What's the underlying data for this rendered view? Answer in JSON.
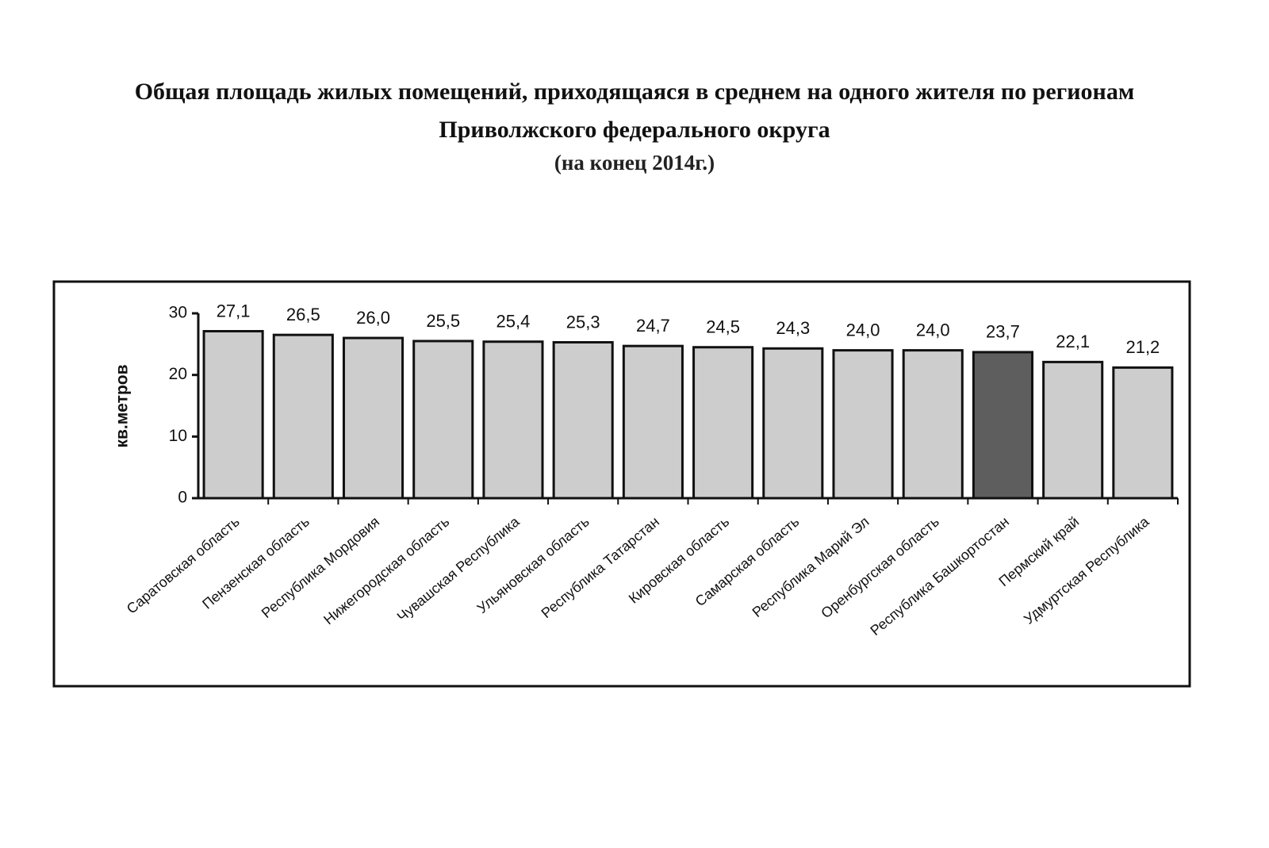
{
  "chart_data": {
    "type": "bar",
    "title": "Общая площадь жилых помещений, приходящаяся в среднем на одного жителя по регионам Приволжского федерального округа",
    "subtitle": "(на конец 2014г.)",
    "y_label": "кв.метров",
    "categories": [
      "Саратовская область",
      "Пензенская область",
      "Республика Мордовия",
      "Нижегородская область",
      "Чувашская Республика",
      "Ульяновская область",
      "Республика Татарстан",
      "Кировская область",
      "Самарская область",
      "Республика  Марий Эл",
      "Оренбургская область",
      "Республика Башкортостан",
      "Пермский край",
      "Удмуртская Республика"
    ],
    "values": [
      27.1,
      26.5,
      26.0,
      25.5,
      25.4,
      25.3,
      24.7,
      24.5,
      24.3,
      24.0,
      24.0,
      23.7,
      22.1,
      21.2
    ],
    "value_labels": [
      "27,1",
      "26,5",
      "26,0",
      "25,5",
      "25,4",
      "25,3",
      "24,7",
      "24,5",
      "24,3",
      "24,0",
      "24,0",
      "23,7",
      "22,1",
      "21,2"
    ],
    "colors": [
      "#cdcdcd",
      "#cdcdcd",
      "#cdcdcd",
      "#cdcdcd",
      "#cdcdcd",
      "#cdcdcd",
      "#cdcdcd",
      "#cdcdcd",
      "#cdcdcd",
      "#cdcdcd",
      "#cdcdcd",
      "#5e5e5e",
      "#cdcdcd",
      "#cdcdcd"
    ],
    "ylim": [
      0,
      30
    ],
    "yticks": [
      0,
      10,
      20,
      30
    ],
    "grid": false
  }
}
